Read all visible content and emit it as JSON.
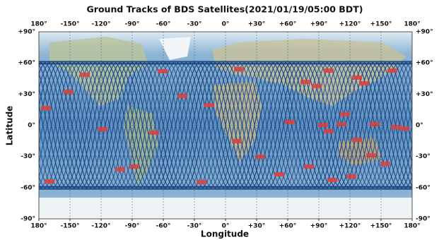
{
  "chart_data": {
    "type": "map",
    "title": "Ground Tracks of BDS Satellites(2021/01/19/05:00 BDT)",
    "xlabel": "Longitude",
    "ylabel": "Latitude",
    "xlim": [
      -180,
      180
    ],
    "ylim": [
      -90,
      90
    ],
    "xticks": [
      {
        "value": -180,
        "label": "180°"
      },
      {
        "value": -150,
        "label": "-150°"
      },
      {
        "value": -120,
        "label": "-120°"
      },
      {
        "value": -90,
        "label": "-90°"
      },
      {
        "value": -60,
        "label": "-60°"
      },
      {
        "value": -30,
        "label": "-30°"
      },
      {
        "value": 0,
        "label": "0°"
      },
      {
        "value": 30,
        "label": "+30°"
      },
      {
        "value": 60,
        "label": "+60°"
      },
      {
        "value": 90,
        "label": "+90°"
      },
      {
        "value": 120,
        "label": "+120°"
      },
      {
        "value": 150,
        "label": "+150°"
      },
      {
        "value": 180,
        "label": "180°"
      }
    ],
    "yticks": [
      {
        "value": -90,
        "label": "-90°"
      },
      {
        "value": -60,
        "label": "-60°"
      },
      {
        "value": -30,
        "label": "-30°"
      },
      {
        "value": 0,
        "label": "0°"
      },
      {
        "value": 30,
        "label": "+30°"
      },
      {
        "value": 60,
        "label": "+60°"
      },
      {
        "value": 90,
        "label": "+90°"
      }
    ],
    "grid": true
  }
}
